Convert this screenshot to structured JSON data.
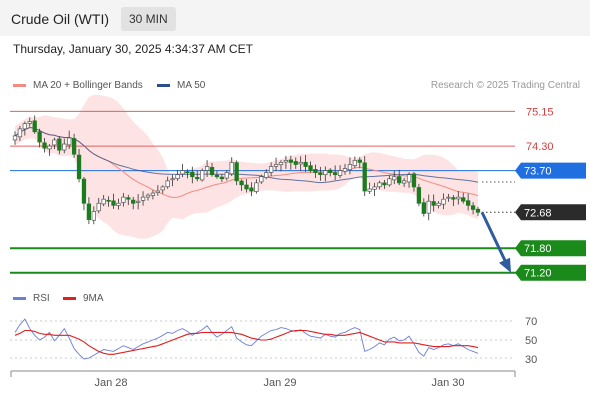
{
  "header": {
    "title": "Crude Oil (WTI)",
    "timeframe": "30 MIN",
    "datetime": "Thursday, January 30, 2025 4:34:37 AM CET"
  },
  "legend": {
    "ma20_label": "MA 20 + Bollinger Bands",
    "ma20_color": "#f28b82",
    "ma50_label": "MA 50",
    "ma50_color": "#2e4e8a"
  },
  "credit": "Research © 2025 Trading Central",
  "rsi_legend": {
    "rsi_label": "RSI",
    "rsi_color": "#6b7fd7",
    "ma_label": "9MA",
    "ma_color": "#e02020"
  },
  "chart_data": [
    {
      "type": "candlestick",
      "title": "",
      "x_ticks": [
        "Jan 28",
        "Jan 29",
        "Jan 30"
      ],
      "ylim": [
        70.9,
        75.55
      ],
      "current_price": {
        "value": "72.68",
        "color": "#2b2b2b"
      },
      "levels": [
        {
          "value": "75.15",
          "kind": "resistance",
          "color": "#e06060"
        },
        {
          "value": "74.30",
          "kind": "resistance",
          "color": "#e06060"
        },
        {
          "value": "73.70",
          "kind": "pivot",
          "color": "#1f6fe0"
        },
        {
          "value": "71.80",
          "kind": "support",
          "color": "#1a8a1a"
        },
        {
          "value": "71.20",
          "kind": "support",
          "color": "#1a8a1a"
        }
      ],
      "closes": [
        74.55,
        74.72,
        74.85,
        74.9,
        74.65,
        74.4,
        74.25,
        74.3,
        74.45,
        74.2,
        74.35,
        74.5,
        74.1,
        73.5,
        72.9,
        72.5,
        72.7,
        72.9,
        73.0,
        72.95,
        72.85,
        72.9,
        73.05,
        73.0,
        72.9,
        72.95,
        73.05,
        73.1,
        73.15,
        73.2,
        73.3,
        73.45,
        73.5,
        73.6,
        73.7,
        73.65,
        73.55,
        73.5,
        73.7,
        73.8,
        73.6,
        73.55,
        73.5,
        73.65,
        73.9,
        73.45,
        73.35,
        73.25,
        73.2,
        73.4,
        73.55,
        73.65,
        73.8,
        73.85,
        73.9,
        73.95,
        73.9,
        73.85,
        73.9,
        73.8,
        73.7,
        73.65,
        73.6,
        73.7,
        73.65,
        73.6,
        73.7,
        73.75,
        73.85,
        73.95,
        73.9,
        73.2,
        73.25,
        73.3,
        73.4,
        73.35,
        73.5,
        73.55,
        73.4,
        73.45,
        73.6,
        73.3,
        72.9,
        72.65,
        72.95,
        72.85,
        72.9,
        73.0,
        73.05,
        73.0,
        73.05,
        72.95,
        72.85,
        72.75,
        72.68
      ],
      "forecast": {
        "from": "72.68",
        "to": "71.20",
        "color": "#2e5c9e"
      }
    },
    {
      "type": "line",
      "title": "",
      "ylim": [
        20,
        80
      ],
      "y_ticks": [
        "70",
        "50",
        "30"
      ],
      "series": [
        {
          "name": "RSI",
          "values": [
            58,
            66,
            72,
            62,
            55,
            50,
            53,
            58,
            49,
            55,
            62,
            52,
            41,
            35,
            30,
            31,
            34,
            37,
            40,
            39,
            38,
            41,
            44,
            42,
            40,
            43,
            46,
            48,
            50,
            52,
            55,
            58,
            57,
            60,
            62,
            59,
            55,
            58,
            61,
            65,
            58,
            53,
            56,
            60,
            64,
            52,
            48,
            45,
            44,
            49,
            54,
            57,
            60,
            61,
            63,
            62,
            60,
            59,
            61,
            57,
            54,
            53,
            52,
            56,
            54,
            53,
            57,
            58,
            61,
            63,
            61,
            38,
            40,
            43,
            47,
            45,
            51,
            53,
            49,
            50,
            54,
            46,
            37,
            33,
            42,
            40,
            42,
            45,
            46,
            44,
            46,
            43,
            40,
            38,
            36
          ]
        },
        {
          "name": "9MA",
          "values": [
            55,
            57,
            60,
            60,
            59,
            57,
            56,
            56,
            55,
            55,
            55,
            55,
            53,
            51,
            48,
            44,
            41,
            38,
            36,
            35,
            35,
            36,
            37,
            38,
            39,
            40,
            41,
            42,
            43,
            44,
            46,
            48,
            50,
            52,
            54,
            56,
            57,
            57,
            58,
            58,
            58,
            58,
            58,
            58,
            58,
            57,
            56,
            54,
            52,
            51,
            50,
            50,
            51,
            53,
            55,
            57,
            59,
            60,
            60,
            60,
            59,
            58,
            57,
            56,
            56,
            55,
            55,
            55,
            56,
            57,
            58,
            56,
            54,
            52,
            50,
            48,
            48,
            48,
            47,
            47,
            47,
            47,
            46,
            45,
            44,
            43,
            43,
            43,
            43,
            44,
            44,
            44,
            44,
            43,
            42
          ]
        }
      ]
    }
  ]
}
